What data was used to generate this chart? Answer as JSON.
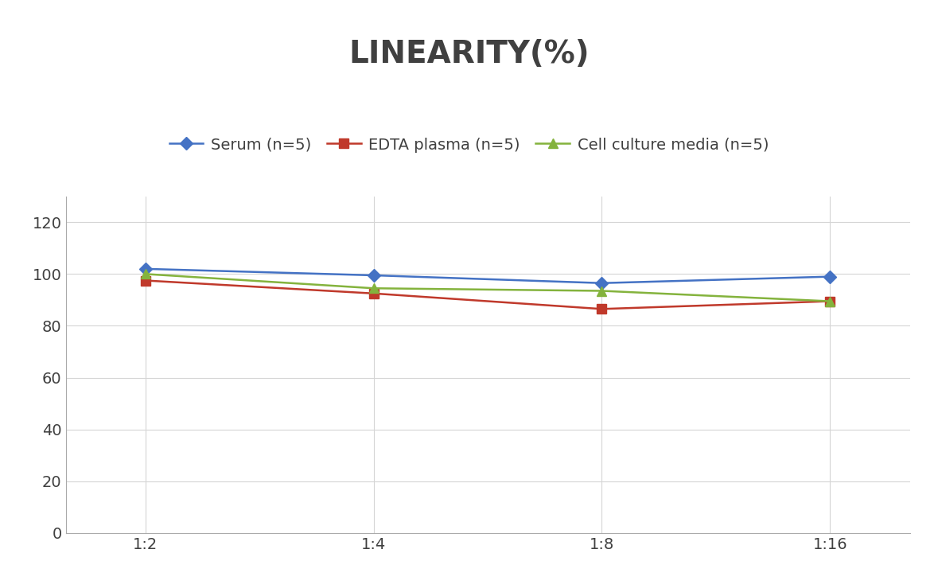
{
  "title": "LINEARITY(%)",
  "title_fontsize": 28,
  "title_fontweight": "bold",
  "title_color": "#404040",
  "x_labels": [
    "1:2",
    "1:4",
    "1:8",
    "1:16"
  ],
  "x_positions": [
    0,
    1,
    2,
    3
  ],
  "series": [
    {
      "label": "Serum (n=5)",
      "values": [
        102,
        99.5,
        96.5,
        99
      ],
      "color": "#4472C4",
      "marker": "D",
      "linewidth": 1.8,
      "markersize": 8,
      "zorder": 3
    },
    {
      "label": "EDTA plasma (n=5)",
      "values": [
        97.5,
        92.5,
        86.5,
        89.5
      ],
      "color": "#C0392B",
      "marker": "s",
      "linewidth": 1.8,
      "markersize": 8,
      "zorder": 3
    },
    {
      "label": "Cell culture media (n=5)",
      "values": [
        100,
        94.5,
        93.5,
        89.5
      ],
      "color": "#84b33d",
      "marker": "^",
      "linewidth": 1.8,
      "markersize": 8,
      "zorder": 3
    }
  ],
  "ylim": [
    0,
    130
  ],
  "yticks": [
    0,
    20,
    40,
    60,
    80,
    100,
    120
  ],
  "grid_color": "#d5d5d5",
  "grid_linewidth": 0.8,
  "background_color": "#ffffff",
  "legend_fontsize": 14,
  "tick_fontsize": 14,
  "axis_linecolor": "#aaaaaa"
}
